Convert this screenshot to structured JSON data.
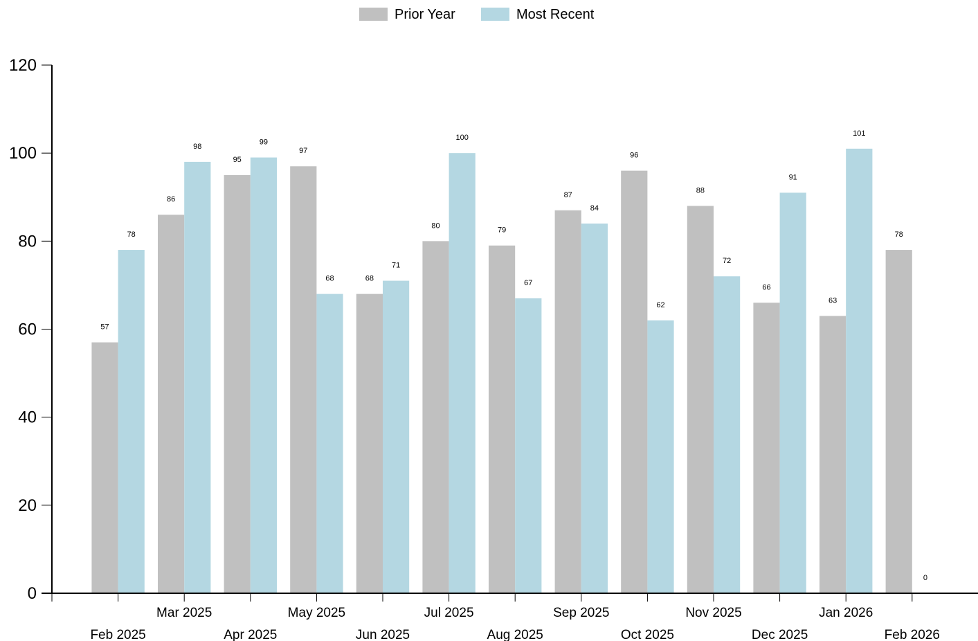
{
  "chart_data": {
    "type": "bar",
    "categories": [
      "Feb 2025",
      "Mar 2025",
      "Apr 2025",
      "May 2025",
      "Jun 2025",
      "Jul 2025",
      "Aug 2025",
      "Sep 2025",
      "Oct 2025",
      "Nov 2025",
      "Dec 2025",
      "Jan 2026",
      "Feb 2026"
    ],
    "series": [
      {
        "name": "Prior Year",
        "color": "#c0c0c0",
        "values": [
          57,
          86,
          95,
          97,
          68,
          80,
          79,
          87,
          96,
          88,
          66,
          63,
          78
        ]
      },
      {
        "name": "Most Recent",
        "color": "#b4d7e2",
        "values": [
          78,
          98,
          99,
          68,
          71,
          100,
          67,
          84,
          62,
          72,
          91,
          101,
          0
        ]
      }
    ],
    "yticks": [
      0,
      20,
      40,
      60,
      80,
      100,
      120
    ],
    "ylim": [
      0,
      120
    ],
    "xlabel": "",
    "ylabel": "",
    "legend_position": "top-center",
    "grid": false
  }
}
